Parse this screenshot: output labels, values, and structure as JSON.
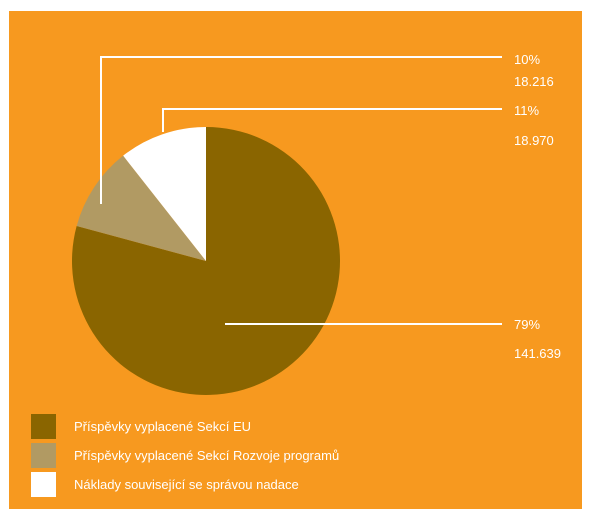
{
  "chart_data": {
    "type": "pie",
    "slices": [
      {
        "label": "Příspěvky vyplacené Sekcí EU",
        "percent": "79%",
        "value": "141.639",
        "amount": 141639,
        "color": "#8A6500"
      },
      {
        "label": "Příspěvky vyplacené Sekcí Rozvoje programů",
        "percent": "10%",
        "value": "18.216",
        "amount": 18216,
        "color": "#B19A63"
      },
      {
        "label": "Náklady související se správou nadace",
        "percent": "11%",
        "value": "18.970",
        "amount": 18970,
        "color": "#FFFFFF"
      }
    ],
    "background": "#F7991F",
    "legend_position": "bottom-left"
  }
}
